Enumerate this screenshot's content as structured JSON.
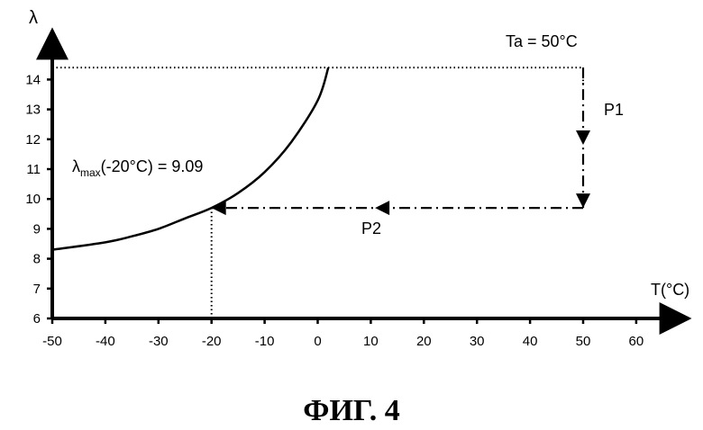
{
  "figure_caption": "ФИГ. 4",
  "chart_data": {
    "type": "line",
    "xlabel": "T(°C)",
    "ylabel": "λ",
    "xlim": [
      -50,
      70
    ],
    "ylim": [
      6,
      15
    ],
    "x_ticks": [
      -50,
      -40,
      -30,
      -20,
      -10,
      0,
      10,
      20,
      30,
      40,
      50,
      60
    ],
    "y_ticks": [
      6,
      7,
      8,
      9,
      10,
      11,
      12,
      13,
      14
    ],
    "grid": false,
    "series": [
      {
        "style": "solid",
        "x": [
          -50,
          -40,
          -35,
          -30,
          -25,
          -20,
          -15,
          -10,
          -5,
          0,
          2
        ],
        "y": [
          8.3,
          8.55,
          8.75,
          9.0,
          9.35,
          9.7,
          10.2,
          10.9,
          11.9,
          13.3,
          14.4
        ]
      },
      {
        "style": "dash-dot-arrow",
        "x": [
          50,
          50
        ],
        "y": [
          14.4,
          9.7
        ]
      },
      {
        "style": "dash-dot-arrow",
        "x": [
          50,
          -20
        ],
        "y": [
          9.7,
          9.7
        ]
      }
    ],
    "reference_lines": [
      {
        "style": "dotted",
        "x": [
          -50,
          50
        ],
        "y": [
          14.4,
          14.4
        ]
      },
      {
        "style": "dotted",
        "x": [
          -20,
          -20
        ],
        "y": [
          6,
          9.7
        ]
      },
      {
        "style": "dotted",
        "x": [
          50,
          50
        ],
        "y": [
          14.4,
          13.8
        ]
      }
    ],
    "annotations": {
      "ta": "Ta = 50°C",
      "p1": "P1",
      "p2": "P2",
      "lambda_symbol": "λ",
      "lambda_sub": "max",
      "lambda_rest": "(-20°C) = 9.09"
    }
  }
}
